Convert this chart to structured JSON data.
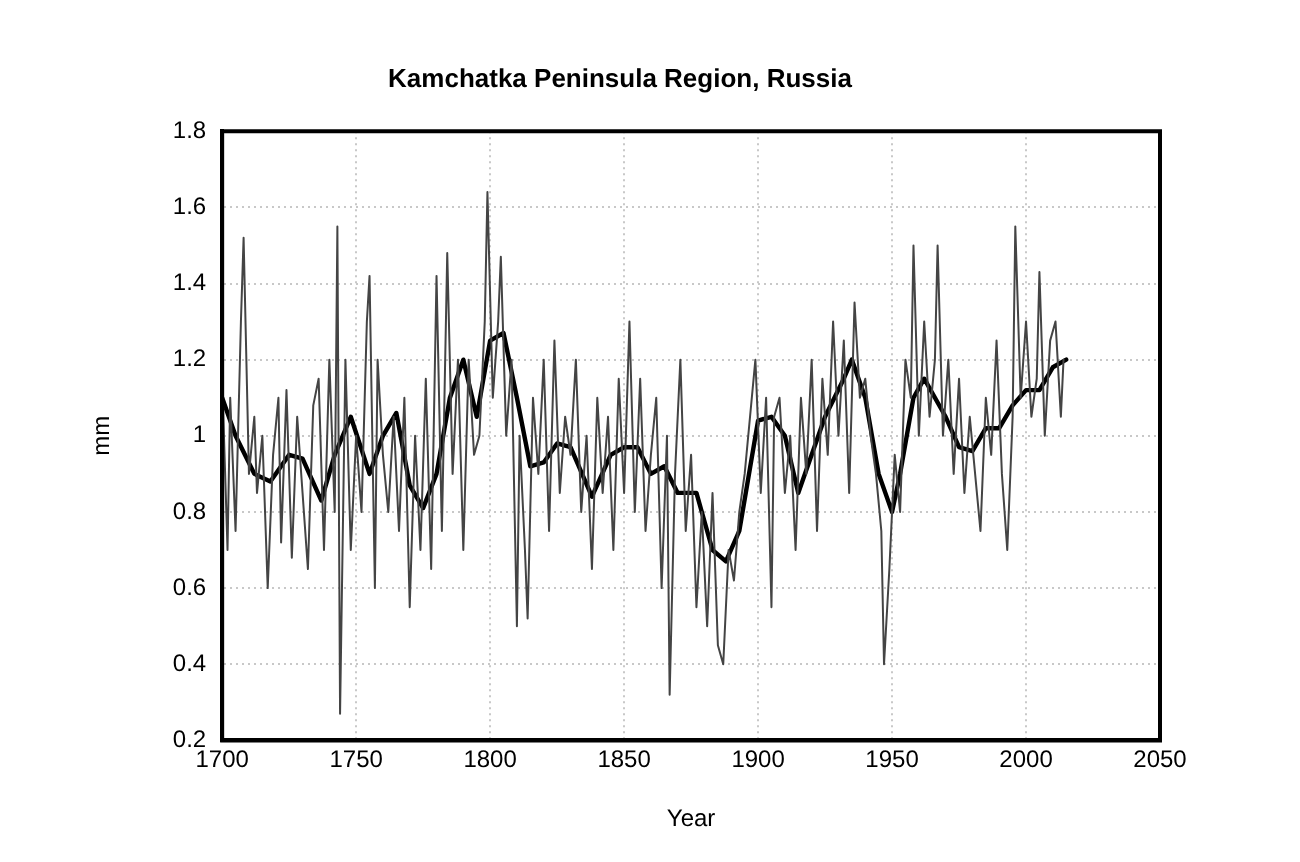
{
  "chart_data": {
    "type": "line",
    "title": "Kamchatka Peninsula Region, Russia",
    "xlabel": "Year",
    "ylabel": "mm",
    "series": [
      {
        "color": "#444444",
        "x": [
          1700,
          1702,
          1703,
          1705,
          1707,
          1708,
          1710,
          1712,
          1713,
          1715,
          1717,
          1719,
          1721,
          1722,
          1724,
          1726,
          1728,
          1730,
          1732,
          1734,
          1736,
          1738,
          1740,
          1742,
          1743,
          1744,
          1746,
          1748,
          1750,
          1752,
          1754,
          1755,
          1757,
          1758,
          1760,
          1762,
          1764,
          1766,
          1768,
          1770,
          1772,
          1774,
          1776,
          1778,
          1780,
          1782,
          1784,
          1786,
          1788,
          1790,
          1792,
          1794,
          1796,
          1798,
          1799,
          1801,
          1803,
          1804,
          1806,
          1808,
          1810,
          1811,
          1813,
          1814,
          1816,
          1818,
          1820,
          1822,
          1824,
          1826,
          1828,
          1830,
          1832,
          1834,
          1836,
          1838,
          1840,
          1842,
          1844,
          1846,
          1848,
          1850,
          1852,
          1854,
          1856,
          1858,
          1860,
          1862,
          1864,
          1866,
          1867,
          1869,
          1871,
          1873,
          1875,
          1877,
          1879,
          1881,
          1883,
          1885,
          1887,
          1889,
          1891,
          1893,
          1895,
          1897,
          1899,
          1901,
          1903,
          1905,
          1906,
          1908,
          1910,
          1912,
          1914,
          1916,
          1918,
          1920,
          1922,
          1924,
          1926,
          1928,
          1930,
          1932,
          1934,
          1936,
          1938,
          1940,
          1942,
          1944,
          1946,
          1947,
          1949,
          1951,
          1953,
          1955,
          1957,
          1958,
          1960,
          1962,
          1964,
          1966,
          1967,
          1969,
          1971,
          1973,
          1975,
          1977,
          1979,
          1981,
          1983,
          1985,
          1987,
          1989,
          1991,
          1993,
          1995,
          1996,
          1998,
          2000,
          2002,
          2004,
          2005,
          2007,
          2009,
          2011,
          2013,
          2014
        ],
        "values": [
          1.15,
          0.7,
          1.1,
          0.75,
          1.3,
          1.52,
          0.9,
          1.05,
          0.85,
          1.0,
          0.6,
          0.95,
          1.1,
          0.72,
          1.12,
          0.68,
          1.05,
          0.85,
          0.65,
          1.08,
          1.15,
          0.7,
          1.2,
          0.8,
          1.55,
          0.27,
          1.2,
          0.7,
          1.0,
          0.8,
          1.3,
          1.42,
          0.6,
          1.2,
          0.95,
          0.8,
          1.05,
          0.75,
          1.1,
          0.55,
          1.0,
          0.7,
          1.15,
          0.65,
          1.42,
          0.75,
          1.48,
          0.9,
          1.2,
          0.7,
          1.2,
          0.95,
          1.0,
          1.3,
          1.64,
          1.1,
          1.3,
          1.47,
          1.0,
          1.2,
          0.5,
          1.0,
          0.7,
          0.52,
          1.1,
          0.9,
          1.2,
          0.75,
          1.25,
          0.85,
          1.05,
          0.95,
          1.2,
          0.8,
          1.0,
          0.65,
          1.1,
          0.85,
          1.05,
          0.7,
          1.15,
          0.85,
          1.3,
          0.8,
          1.15,
          0.75,
          0.95,
          1.1,
          0.6,
          1.0,
          0.32,
          0.9,
          1.2,
          0.75,
          0.95,
          0.55,
          0.8,
          0.5,
          0.85,
          0.45,
          0.4,
          0.7,
          0.62,
          0.8,
          0.9,
          1.05,
          1.2,
          0.85,
          1.1,
          0.55,
          1.05,
          1.1,
          0.85,
          1.0,
          0.7,
          1.1,
          0.9,
          1.2,
          0.75,
          1.15,
          0.95,
          1.3,
          1.0,
          1.25,
          0.85,
          1.35,
          1.1,
          1.15,
          1.0,
          0.9,
          0.75,
          0.4,
          0.65,
          0.95,
          0.8,
          1.2,
          1.1,
          1.5,
          1.0,
          1.3,
          1.05,
          1.2,
          1.5,
          1.0,
          1.2,
          0.9,
          1.15,
          0.85,
          1.05,
          0.9,
          0.75,
          1.1,
          0.95,
          1.25,
          0.9,
          0.7,
          1.05,
          1.55,
          1.1,
          1.3,
          1.05,
          1.15,
          1.43,
          1.0,
          1.25,
          1.3,
          1.05,
          1.2
        ]
      },
      {
        "color": "#000000",
        "x": [
          1700,
          1705,
          1712,
          1718,
          1725,
          1730,
          1737,
          1742,
          1748,
          1755,
          1760,
          1765,
          1770,
          1775,
          1780,
          1785,
          1790,
          1795,
          1800,
          1805,
          1810,
          1815,
          1820,
          1825,
          1830,
          1838,
          1845,
          1850,
          1855,
          1860,
          1865,
          1870,
          1877,
          1883,
          1888,
          1893,
          1900,
          1905,
          1910,
          1915,
          1920,
          1925,
          1932,
          1935,
          1940,
          1945,
          1950,
          1953,
          1958,
          1962,
          1970,
          1975,
          1980,
          1985,
          1990,
          1995,
          2000,
          2005,
          2010,
          2015
        ],
        "values": [
          1.1,
          1.0,
          0.9,
          0.88,
          0.95,
          0.94,
          0.83,
          0.95,
          1.05,
          0.9,
          1.0,
          1.06,
          0.87,
          0.81,
          0.9,
          1.1,
          1.2,
          1.05,
          1.25,
          1.27,
          1.1,
          0.92,
          0.93,
          0.98,
          0.97,
          0.84,
          0.95,
          0.97,
          0.97,
          0.9,
          0.92,
          0.85,
          0.85,
          0.7,
          0.67,
          0.75,
          1.04,
          1.05,
          1.0,
          0.85,
          0.95,
          1.05,
          1.15,
          1.2,
          1.1,
          0.9,
          0.8,
          0.9,
          1.1,
          1.15,
          1.05,
          0.97,
          0.96,
          1.02,
          1.02,
          1.08,
          1.12,
          1.12,
          1.18,
          1.2
        ]
      }
    ],
    "xlim": [
      1700,
      2050
    ],
    "xticks": [
      1700,
      1750,
      1800,
      1850,
      1900,
      1950,
      2000,
      2050
    ],
    "ylim": [
      0.2,
      1.8
    ],
    "yticks": [
      0.2,
      0.4,
      0.6,
      0.8,
      1,
      1.2,
      1.4,
      1.6,
      1.8
    ],
    "grid": true,
    "legend": false,
    "marker": "none",
    "line_style": "solid"
  }
}
